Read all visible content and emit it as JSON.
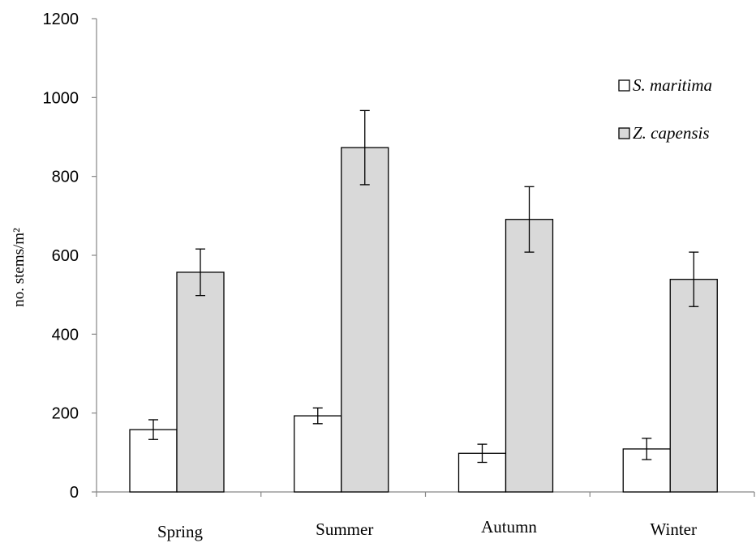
{
  "chart_data": {
    "type": "bar",
    "title": "",
    "xlabel": "",
    "ylabel": "no. stems/m²",
    "ylim": [
      0,
      1200
    ],
    "yticks": [
      0,
      200,
      400,
      600,
      800,
      1000,
      1200
    ],
    "categories": [
      "Spring",
      "Summer",
      "Autumn",
      "Winter"
    ],
    "series": [
      {
        "name": "S. maritima",
        "color": "#ffffff",
        "values": [
          158,
          193,
          98,
          109
        ],
        "errors": [
          25,
          20,
          23,
          27
        ]
      },
      {
        "name": "Z. capensis",
        "color": "#d9d9d9",
        "values": [
          557,
          873,
          691,
          539
        ],
        "errors": [
          59,
          94,
          83,
          69
        ]
      }
    ],
    "error_bars": true,
    "grid": false,
    "legend_position": "top-right"
  }
}
